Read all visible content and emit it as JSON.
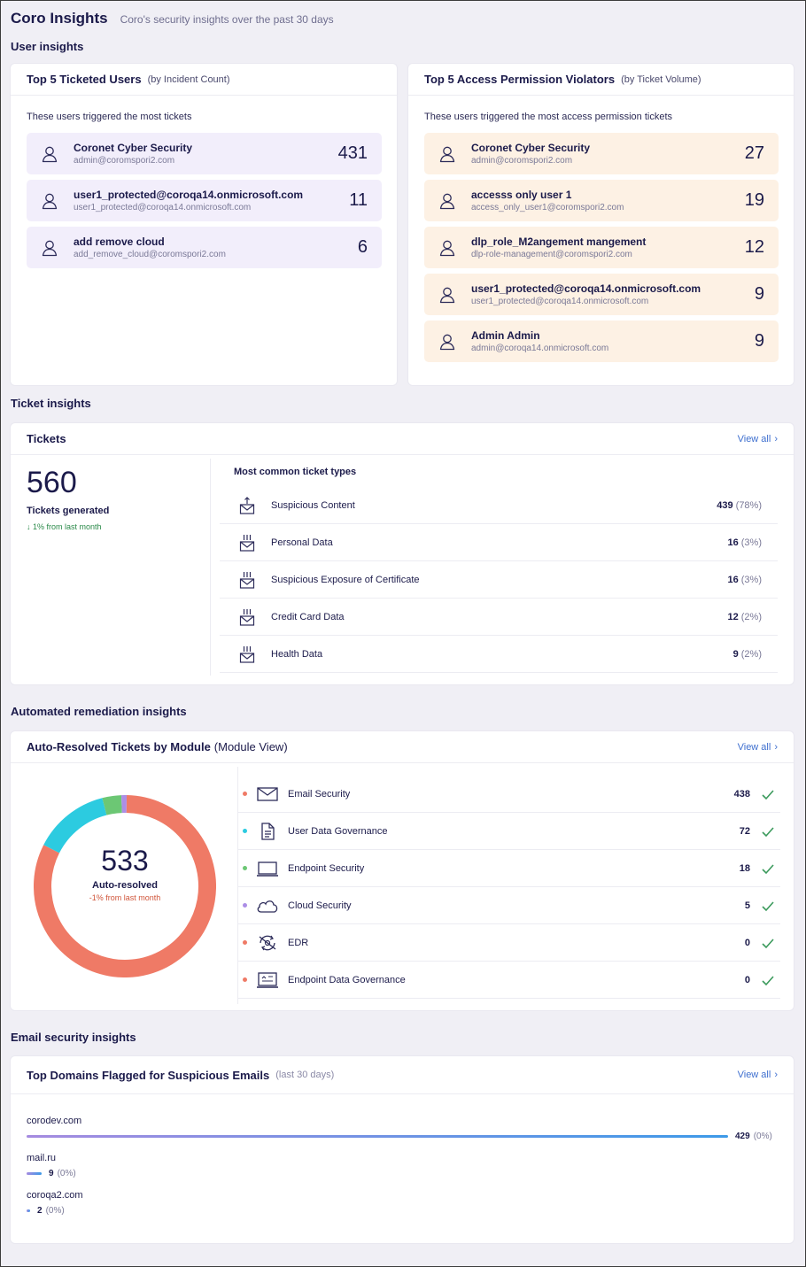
{
  "header": {
    "title": "Coro Insights",
    "subtitle": "Coro's security insights over the past 30 days"
  },
  "sections": {
    "user": "User insights",
    "ticket": "Ticket insights",
    "remediation": "Automated remediation insights",
    "email": "Email security insights"
  },
  "ticketed_users": {
    "title": "Top 5 Ticketed Users",
    "subtitle": "(by Incident Count)",
    "desc": "These users triggered the most tickets",
    "rows": [
      {
        "name": "Coronet Cyber Security",
        "email": "admin@coromspori2.com",
        "count": "431"
      },
      {
        "name": "user1_protected@coroqa14.onmicrosoft.com",
        "email": "user1_protected@coroqa14.onmicrosoft.com",
        "count": "11"
      },
      {
        "name": "add remove cloud",
        "email": "add_remove_cloud@coromspori2.com",
        "count": "6"
      }
    ]
  },
  "violators": {
    "title": "Top 5 Access Permission Violators",
    "subtitle": "(by Ticket Volume)",
    "desc": "These users triggered the most access permission tickets",
    "rows": [
      {
        "name": "Coronet Cyber Security",
        "email": "admin@coromspori2.com",
        "count": "27"
      },
      {
        "name": "accesss only user 1",
        "email": "access_only_user1@coromspori2.com",
        "count": "19"
      },
      {
        "name": "dlp_role_M2angement mangement",
        "email": "dlp-role-management@coromspori2.com",
        "count": "12"
      },
      {
        "name": "user1_protected@coroqa14.onmicrosoft.com",
        "email": "user1_protected@coroqa14.onmicrosoft.com",
        "count": "9"
      },
      {
        "name": "Admin Admin",
        "email": "admin@coroqa14.onmicrosoft.com",
        "count": "9"
      }
    ]
  },
  "tickets": {
    "title": "Tickets",
    "view_all": "View all",
    "total": "560",
    "total_label": "Tickets generated",
    "trend": "1% from last month",
    "types_title": "Most common ticket types",
    "types": [
      {
        "label": "Suspicious Content",
        "value": "439",
        "pct": "(78%)",
        "icon": "mail-upload-icon"
      },
      {
        "label": "Personal Data",
        "value": "16",
        "pct": "(3%)",
        "icon": "mail-data-icon"
      },
      {
        "label": "Suspicious Exposure of Certificate",
        "value": "16",
        "pct": "(3%)",
        "icon": "mail-data-icon"
      },
      {
        "label": "Credit Card Data",
        "value": "12",
        "pct": "(2%)",
        "icon": "mail-data-icon"
      },
      {
        "label": "Health Data",
        "value": "9",
        "pct": "(2%)",
        "icon": "mail-data-icon"
      }
    ]
  },
  "auto_resolved": {
    "title": "Auto-Resolved Tickets by Module",
    "subtitle": "(Module View)",
    "view_all": "View all",
    "total": "533",
    "total_label": "Auto-resolved",
    "trend": "-1% from last month",
    "modules": [
      {
        "label": "Email Security",
        "value": "438",
        "color": "#ef7a66",
        "icon": "envelope-icon"
      },
      {
        "label": "User Data Governance",
        "value": "72",
        "color": "#2ccbe0",
        "icon": "document-icon"
      },
      {
        "label": "Endpoint Security",
        "value": "18",
        "color": "#6cc774",
        "icon": "laptop-icon"
      },
      {
        "label": "Cloud Security",
        "value": "5",
        "color": "#ac8ee6",
        "icon": "cloud-icon"
      },
      {
        "label": "EDR",
        "value": "0",
        "color": "#ef7a66",
        "icon": "edr-icon"
      },
      {
        "label": "Endpoint Data Governance",
        "value": "0",
        "color": "#ef7a66",
        "icon": "monitor-data-icon"
      }
    ]
  },
  "domains": {
    "title": "Top Domains Flagged for Suspicious Emails",
    "subtitle": "(last 30 days)",
    "view_all": "View all",
    "rows": [
      {
        "name": "corodev.com",
        "value": "429",
        "pct": "(0%)",
        "share": 1.0
      },
      {
        "name": "mail.ru",
        "value": "9",
        "pct": "(0%)",
        "share": 0.021
      },
      {
        "name": "coroqa2.com",
        "value": "2",
        "pct": "(0%)",
        "share": 0.005
      }
    ]
  },
  "colors": {
    "accent": "#3e6fcf",
    "purple_row": "#f2eefb",
    "orange_row": "#fdf1e4",
    "check": "#3b9a5c"
  }
}
